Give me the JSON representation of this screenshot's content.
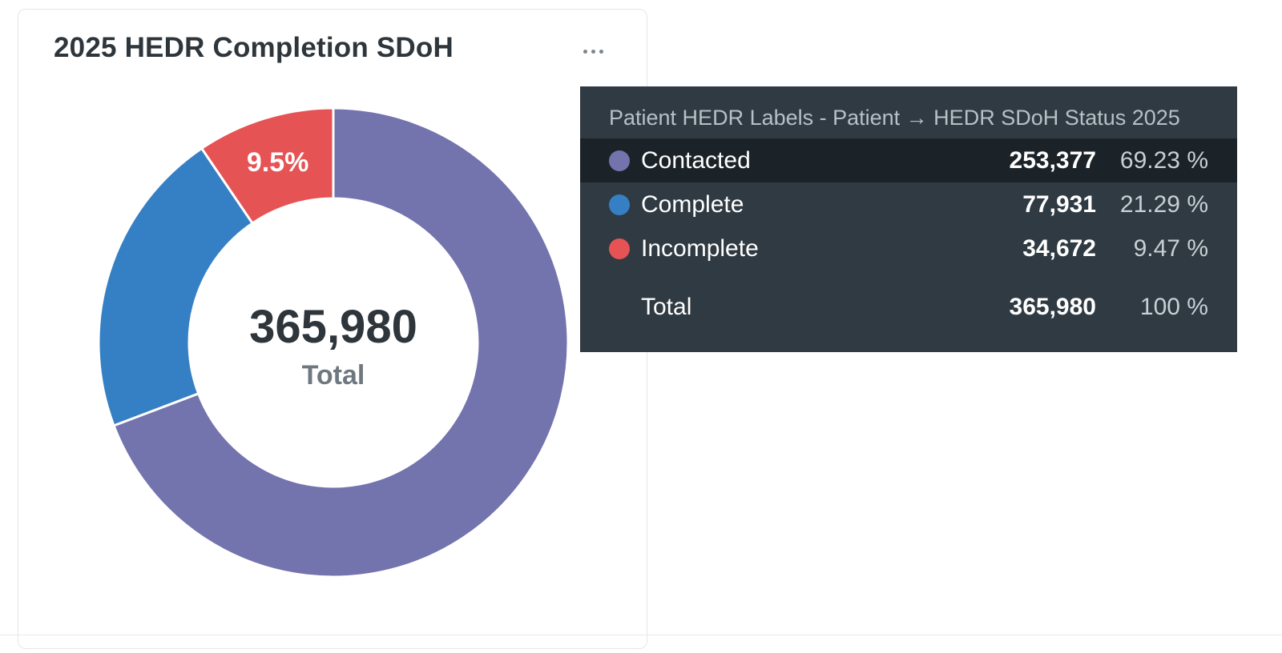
{
  "card": {
    "title": "2025 HEDR Completion SDoH",
    "more_icon": "ellipsis-icon"
  },
  "chart_data": {
    "type": "pie",
    "style": "donut",
    "title": "2025 HEDR Completion SDoH",
    "center_value": "365,980",
    "center_label": "Total",
    "slices": [
      {
        "label": "Contacted",
        "value": 253377,
        "color": "#7373ae",
        "slice_label": ""
      },
      {
        "label": "Complete",
        "value": 77931,
        "color": "#3580c4",
        "slice_label": ""
      },
      {
        "label": "Incomplete",
        "value": 34672,
        "color": "#e55354",
        "slice_label": "9.5%"
      }
    ]
  },
  "tooltip": {
    "header": "Patient HEDR Labels - Patient → HEDR SDoH Status 2025",
    "rows": [
      {
        "label": "Contacted",
        "value": "253,377",
        "pct": "69.23 %",
        "color": "#7373ae"
      },
      {
        "label": "Complete",
        "value": "77,931",
        "pct": "21.29 %",
        "color": "#3580c4"
      },
      {
        "label": "Incomplete",
        "value": "34,672",
        "pct": "9.47 %",
        "color": "#e55354"
      }
    ],
    "total": {
      "label": "Total",
      "value": "365,980",
      "pct": "100 %"
    }
  }
}
